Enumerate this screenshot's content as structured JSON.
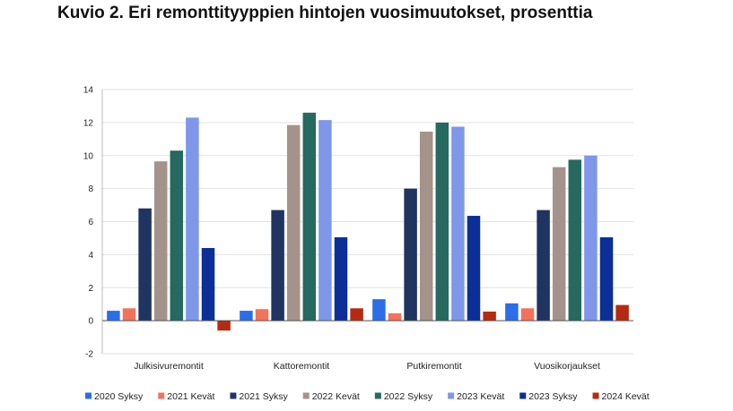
{
  "title": "Kuvio 2. Eri remonttityyppien hintojen vuosimuutokset, prosenttia",
  "chart_data": {
    "type": "bar",
    "title": "Kuvio 2. Eri remonttityyppien hintojen vuosimuutokset, prosenttia",
    "xlabel": "",
    "ylabel": "",
    "ylim": [
      -2,
      14
    ],
    "yticks": [
      -2,
      0,
      2,
      4,
      6,
      8,
      10,
      12,
      14
    ],
    "grid": true,
    "legend_position": "bottom",
    "categories": [
      "Julkisivuremontit",
      "Kattoremontit",
      "Putkiremontit",
      "Vuosikorjaukset"
    ],
    "series": [
      {
        "name": "2020 Syksy",
        "color": "#2b6ee8",
        "values": [
          0.6,
          0.6,
          1.3,
          1.05
        ]
      },
      {
        "name": "2021 Kevät",
        "color": "#f2735a",
        "values": [
          0.75,
          0.7,
          0.45,
          0.75
        ]
      },
      {
        "name": "2021 Syksy",
        "color": "#1f3461",
        "values": [
          6.8,
          6.7,
          8.0,
          6.7
        ]
      },
      {
        "name": "2022 Kevät",
        "color": "#a4938a",
        "values": [
          9.65,
          11.85,
          11.45,
          9.3
        ]
      },
      {
        "name": "2022 Syksy",
        "color": "#25695f",
        "values": [
          10.3,
          12.6,
          12.0,
          9.75
        ]
      },
      {
        "name": "2023 Kevät",
        "color": "#7e97e8",
        "values": [
          12.3,
          12.15,
          11.75,
          10.0
        ]
      },
      {
        "name": "2023 Syksy",
        "color": "#0b2f97",
        "values": [
          4.4,
          5.05,
          6.35,
          5.05
        ]
      },
      {
        "name": "2024 Kevät",
        "color": "#b52a12",
        "values": [
          -0.6,
          0.75,
          0.55,
          0.95
        ]
      }
    ]
  }
}
